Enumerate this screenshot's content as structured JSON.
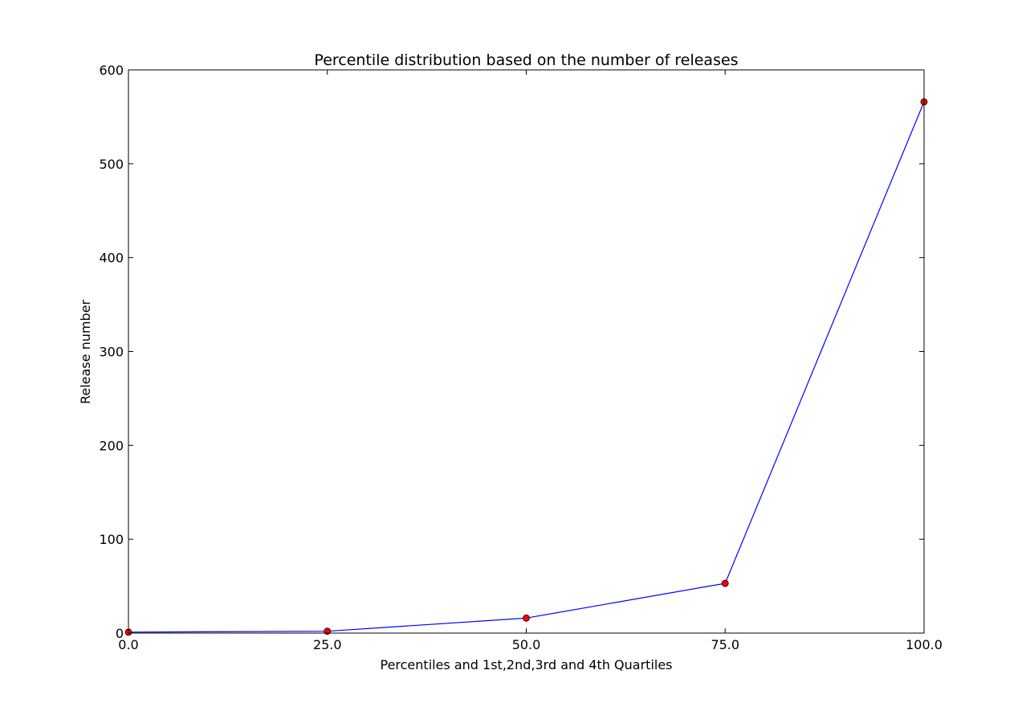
{
  "chart_data": {
    "type": "line",
    "title": "Percentile distribution based on the number of releases",
    "xlabel": "Percentiles and 1st,2nd,3rd and 4th Quartiles",
    "ylabel": "Release number",
    "xlim": [
      0,
      100
    ],
    "ylim": [
      0,
      600
    ],
    "x_ticks": [
      0,
      25,
      50,
      75,
      100
    ],
    "x_tick_labels": [
      "0.0",
      "25.0",
      "50.0",
      "75.0",
      "100.0"
    ],
    "y_ticks": [
      0,
      100,
      200,
      300,
      400,
      500,
      600
    ],
    "y_tick_labels": [
      "0",
      "100",
      "200",
      "300",
      "400",
      "500",
      "600"
    ],
    "grid": false,
    "series": [
      {
        "x": [
          0,
          25,
          50,
          75,
          100
        ],
        "values": [
          1,
          2,
          16,
          53,
          566
        ],
        "line_color": "#0000ff",
        "marker_color": "#ff0000"
      }
    ]
  }
}
